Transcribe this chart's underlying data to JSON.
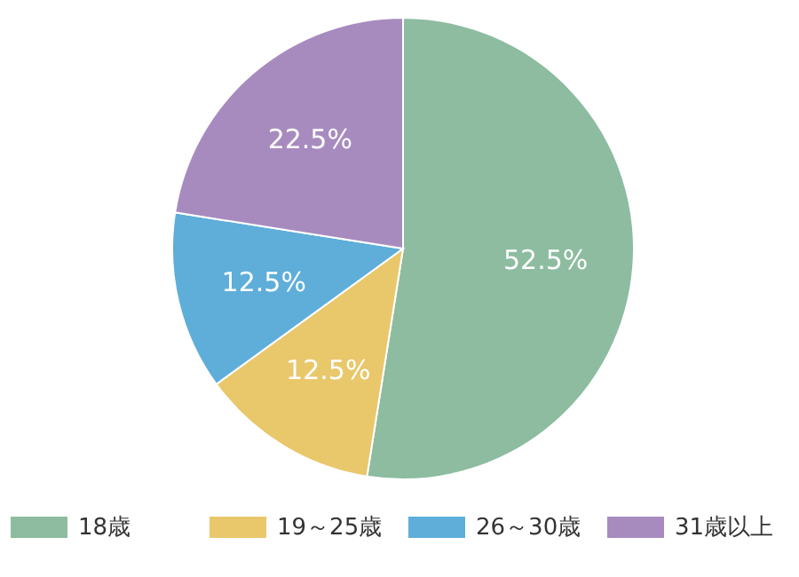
{
  "chart_data": {
    "type": "pie",
    "categories": [
      "18歳",
      "19～25歳",
      "26～30歳",
      "31歳以上"
    ],
    "values": [
      52.5,
      12.5,
      12.5,
      22.5
    ],
    "value_labels": [
      "52.5%",
      "12.5%",
      "12.5%",
      "22.5%"
    ],
    "colors": [
      "#8dbca0",
      "#e9c76b",
      "#5eaed9",
      "#a78bbf"
    ],
    "legend": "bottom"
  }
}
